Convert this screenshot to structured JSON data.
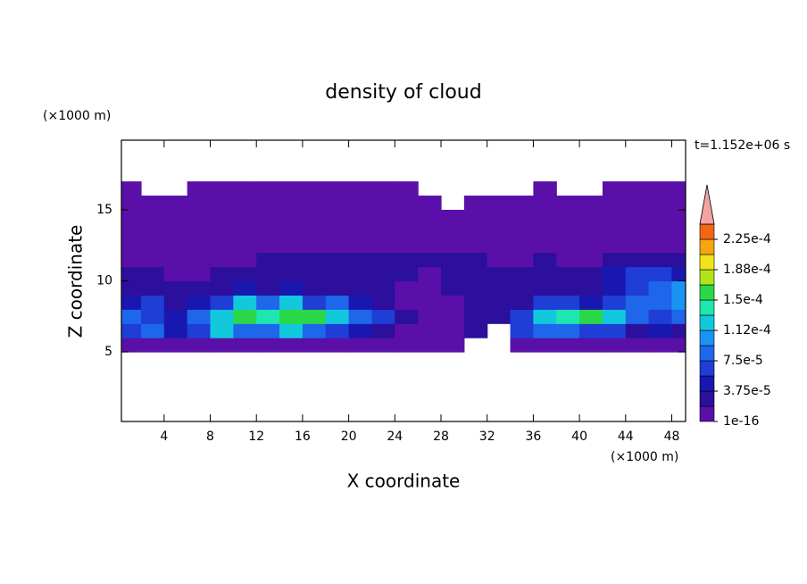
{
  "chart_data": {
    "type": "contour",
    "title": "density of cloud",
    "x_label": "X coordinate",
    "y_label": "Z coordinate",
    "x_unit": "(×1000 m)",
    "y_unit": "(×1000 m)",
    "time_label": "t=1.152e+06 s",
    "xlim": [
      0.3,
      49.2
    ],
    "ylim": [
      0.1,
      19.9
    ],
    "xticks": [
      4,
      8,
      12,
      16,
      20,
      24,
      28,
      32,
      36,
      40,
      44,
      48
    ],
    "yticks": [
      5,
      10,
      15
    ],
    "x": [
      1,
      3,
      5,
      7,
      9,
      11,
      13,
      15,
      17,
      19,
      21,
      23,
      25,
      27,
      29,
      31,
      33,
      35,
      37,
      39,
      41,
      43,
      45,
      47,
      49
    ],
    "y": [
      5.5,
      6.5,
      7.5,
      8.5,
      9.5,
      10.5,
      11.5,
      12.5,
      13.5,
      14.5,
      15.5,
      16.5
    ],
    "cell_width": 2,
    "cell_height": 1,
    "z": [
      [
        1e-06,
        1e-06,
        1e-06,
        1e-06,
        1e-06,
        1e-06,
        1e-06,
        1e-06,
        1e-06,
        1e-06,
        1e-06,
        1e-06,
        1e-06,
        1e-06,
        1e-06,
        null,
        null,
        1e-06,
        1e-06,
        1e-06,
        1e-06,
        1e-06,
        1e-06,
        1e-06,
        1e-06
      ],
      [
        6.5e-05,
        8.5e-05,
        4.5e-05,
        6.5e-05,
        0.00012,
        8.5e-05,
        8.5e-05,
        0.00012,
        8.5e-05,
        6.5e-05,
        4.5e-05,
        2.5e-05,
        1e-06,
        1e-06,
        1e-06,
        2.5e-05,
        null,
        6.5e-05,
        8.5e-05,
        8.5e-05,
        6.5e-05,
        6.5e-05,
        2.5e-05,
        4.5e-05,
        2.5e-05
      ],
      [
        8.5e-05,
        6.5e-05,
        4.5e-05,
        8.5e-05,
        0.00012,
        0.00016,
        0.00014,
        0.00016,
        0.00016,
        0.00012,
        8.5e-05,
        6.5e-05,
        2.5e-05,
        1e-06,
        1e-06,
        2.5e-05,
        2.5e-05,
        6.5e-05,
        0.00012,
        0.00014,
        0.00016,
        0.00012,
        8.5e-05,
        6.5e-05,
        8.5e-05
      ],
      [
        4.5e-05,
        6.5e-05,
        2.5e-05,
        4.5e-05,
        6.5e-05,
        0.00012,
        8.5e-05,
        0.00012,
        6.5e-05,
        8.5e-05,
        4.5e-05,
        2.5e-05,
        1e-06,
        1e-06,
        1e-06,
        2.5e-05,
        2.5e-05,
        2.5e-05,
        6.5e-05,
        6.5e-05,
        4.5e-05,
        6.5e-05,
        8.5e-05,
        8.5e-05,
        0.0001
      ],
      [
        2.5e-05,
        2.5e-05,
        2.5e-05,
        2.5e-05,
        2.5e-05,
        4.5e-05,
        2.5e-05,
        4.5e-05,
        2.5e-05,
        2.5e-05,
        2.5e-05,
        2.5e-05,
        1e-06,
        1e-06,
        2.5e-05,
        2.5e-05,
        2.5e-05,
        2.5e-05,
        2.5e-05,
        2.5e-05,
        2.5e-05,
        4.5e-05,
        6.5e-05,
        8.5e-05,
        0.0001
      ],
      [
        2.5e-05,
        2.5e-05,
        1e-06,
        1e-06,
        2.5e-05,
        2.5e-05,
        2.5e-05,
        2.5e-05,
        2.5e-05,
        2.5e-05,
        2.5e-05,
        2.5e-05,
        2.5e-05,
        1e-06,
        2.5e-05,
        2.5e-05,
        2.5e-05,
        2.5e-05,
        2.5e-05,
        2.5e-05,
        2.5e-05,
        4.5e-05,
        6.5e-05,
        6.5e-05,
        4.5e-05
      ],
      [
        1e-06,
        1e-06,
        1e-06,
        1e-06,
        1e-06,
        1e-06,
        2.5e-05,
        2.5e-05,
        2.5e-05,
        2.5e-05,
        2.5e-05,
        2.5e-05,
        2.5e-05,
        2.5e-05,
        2.5e-05,
        2.5e-05,
        1e-06,
        1e-06,
        2.5e-05,
        1e-06,
        1e-06,
        2.5e-05,
        2.5e-05,
        2.5e-05,
        2.5e-05
      ],
      [
        1e-06,
        1e-06,
        1e-06,
        1e-06,
        1e-06,
        1e-06,
        1e-06,
        1e-06,
        1e-06,
        1e-06,
        1e-06,
        1e-06,
        1e-06,
        1e-06,
        1e-06,
        1e-06,
        1e-06,
        1e-06,
        1e-06,
        1e-06,
        1e-06,
        1e-06,
        1e-06,
        1e-06,
        1e-06
      ],
      [
        1e-06,
        1e-06,
        1e-06,
        1e-06,
        1e-06,
        1e-06,
        1e-06,
        1e-06,
        1e-06,
        1e-06,
        1e-06,
        1e-06,
        1e-06,
        1e-06,
        1e-06,
        1e-06,
        1e-06,
        1e-06,
        1e-06,
        1e-06,
        1e-06,
        1e-06,
        1e-06,
        1e-06,
        1e-06
      ],
      [
        1e-06,
        1e-06,
        1e-06,
        1e-06,
        1e-06,
        1e-06,
        1e-06,
        1e-06,
        1e-06,
        1e-06,
        1e-06,
        1e-06,
        1e-06,
        1e-06,
        1e-06,
        1e-06,
        1e-06,
        1e-06,
        1e-06,
        1e-06,
        1e-06,
        1e-06,
        1e-06,
        1e-06,
        1e-06
      ],
      [
        1e-06,
        1e-06,
        1e-06,
        1e-06,
        1e-06,
        1e-06,
        1e-06,
        1e-06,
        1e-06,
        1e-06,
        1e-06,
        1e-06,
        1e-06,
        1e-06,
        null,
        1e-06,
        1e-06,
        1e-06,
        1e-06,
        1e-06,
        1e-06,
        1e-06,
        1e-06,
        1e-06,
        1e-06
      ],
      [
        1e-06,
        null,
        null,
        1e-06,
        1e-06,
        1e-06,
        1e-06,
        1e-06,
        1e-06,
        1e-06,
        1e-06,
        1e-06,
        1e-06,
        null,
        null,
        null,
        null,
        null,
        1e-06,
        null,
        null,
        1e-06,
        1e-06,
        1e-06,
        1e-06
      ]
    ],
    "levels": [
      1e-16,
      1.875e-05,
      3.75e-05,
      5.625e-05,
      7.5e-05,
      9.375e-05,
      0.0001125,
      0.00013125,
      0.00015,
      0.00016875,
      0.0001875,
      0.00020625,
      0.000225,
      0.00024375
    ],
    "colors": [
      "#5a10a8",
      "#2c0f9c",
      "#1818b0",
      "#1e3ed6",
      "#1e66ea",
      "#1a94f2",
      "#12c8dc",
      "#1ee6b0",
      "#2ad84a",
      "#b0e41a",
      "#f2e41a",
      "#f5a512",
      "#f06814"
    ],
    "extend_color": "#f4a3a3",
    "colorbar_ticks": [
      {
        "value": 1e-16,
        "label": "1e-16"
      },
      {
        "value": 3.75e-05,
        "label": "3.75e-5"
      },
      {
        "value": 7.5e-05,
        "label": "7.5e-5"
      },
      {
        "value": 0.0001125,
        "label": "1.12e-4"
      },
      {
        "value": 0.00015,
        "label": "1.5e-4"
      },
      {
        "value": 0.0001875,
        "label": "1.88e-4"
      },
      {
        "value": 0.000225,
        "label": "2.25e-4"
      }
    ]
  }
}
